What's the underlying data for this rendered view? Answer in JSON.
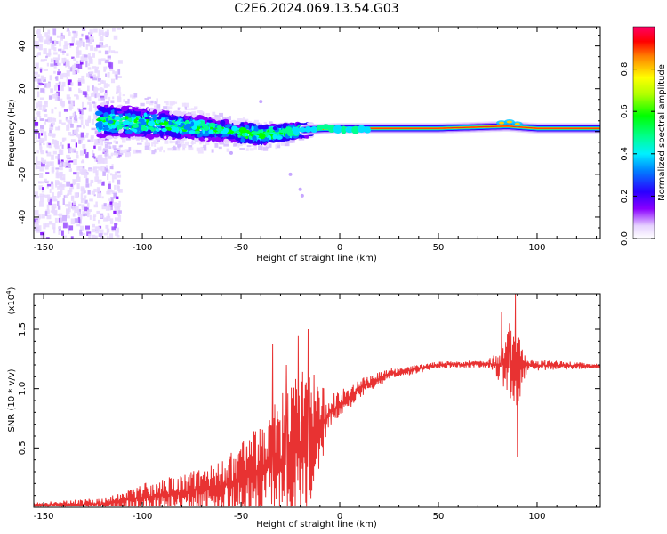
{
  "page": {
    "title": "C2E6.2024.069.13.54.G03"
  },
  "chart_data": [
    {
      "type": "heatmap",
      "xlabel": "Height of straight line (km)",
      "ylabel": "Frequency (Hz)",
      "xlim": [
        -155,
        132
      ],
      "ylim": [
        -50,
        49
      ],
      "x_ticks": [
        -150,
        -100,
        -50,
        0,
        50,
        100
      ],
      "x_tick_labels": [
        "-150",
        "-100",
        "-50",
        "0",
        "50",
        "100"
      ],
      "y_ticks": [
        -40,
        -20,
        0,
        20,
        40
      ],
      "y_tick_labels": [
        "-40",
        "-20",
        "0",
        "20",
        "40"
      ],
      "ridge": [
        {
          "x": -120,
          "f": 5
        },
        {
          "x": -100,
          "f": 4
        },
        {
          "x": -80,
          "f": 2.5
        },
        {
          "x": -60,
          "f": 0.5
        },
        {
          "x": -40,
          "f": -1.5
        },
        {
          "x": -25,
          "f": 0
        },
        {
          "x": -15,
          "f": 1
        },
        {
          "x": 0,
          "f": 1.5
        },
        {
          "x": 50,
          "f": 1.5
        },
        {
          "x": 85,
          "f": 2.5
        },
        {
          "x": 100,
          "f": 1.5
        },
        {
          "x": 132,
          "f": 1.5
        }
      ],
      "noise_region_km": [
        -155,
        -112
      ]
    },
    {
      "type": "colorbar",
      "label": "Normalized spectral amplitude",
      "range": [
        0,
        1
      ],
      "ticks": [
        0.0,
        0.2,
        0.4,
        0.6,
        0.8
      ],
      "tick_labels": [
        "0.0",
        "0.2",
        "0.4",
        "0.6",
        "0.8"
      ]
    },
    {
      "type": "line",
      "xlabel": "Height of straight line (km)",
      "ylabel": "SNR (10 * v/v)",
      "y_multiplier_label": "(x10",
      "y_multiplier_exp": "4",
      "y_multiplier_close": ")",
      "xlim": [
        -155,
        132
      ],
      "ylim": [
        0,
        1.8
      ],
      "x_ticks": [
        -150,
        -100,
        -50,
        0,
        50,
        100
      ],
      "x_tick_labels": [
        "-150",
        "-100",
        "-50",
        "0",
        "50",
        "100"
      ],
      "y_ticks": [
        0.5,
        1.0,
        1.5
      ],
      "y_tick_labels": [
        "0.5",
        "1.0",
        "1.5"
      ],
      "line_color": "#e83232",
      "envelope": [
        {
          "x": -155,
          "base": 0.02,
          "amp": 0.02
        },
        {
          "x": -120,
          "base": 0.03,
          "amp": 0.05
        },
        {
          "x": -100,
          "base": 0.08,
          "amp": 0.12
        },
        {
          "x": -80,
          "base": 0.12,
          "amp": 0.16
        },
        {
          "x": -60,
          "base": 0.18,
          "amp": 0.2
        },
        {
          "x": -40,
          "base": 0.3,
          "amp": 0.4
        },
        {
          "x": -30,
          "base": 0.4,
          "amp": 0.55
        },
        {
          "x": -20,
          "base": 0.5,
          "amp": 0.7
        },
        {
          "x": -12,
          "base": 0.65,
          "amp": 0.5
        },
        {
          "x": -5,
          "base": 0.8,
          "amp": 0.15
        },
        {
          "x": 10,
          "base": 1.0,
          "amp": 0.08
        },
        {
          "x": 25,
          "base": 1.12,
          "amp": 0.05
        },
        {
          "x": 50,
          "base": 1.2,
          "amp": 0.03
        },
        {
          "x": 75,
          "base": 1.21,
          "amp": 0.03
        },
        {
          "x": 80,
          "base": 1.2,
          "amp": 0.12
        },
        {
          "x": 86,
          "base": 1.2,
          "amp": 0.3
        },
        {
          "x": 90,
          "base": 1.15,
          "amp": 0.35
        },
        {
          "x": 95,
          "base": 1.2,
          "amp": 0.05
        },
        {
          "x": 132,
          "base": 1.19,
          "amp": 0.02
        }
      ],
      "spikes": [
        {
          "x": -34,
          "y": 1.38
        },
        {
          "x": -21,
          "y": 1.45
        },
        {
          "x": -16,
          "y": 1.5
        },
        {
          "x": -27,
          "y": 1.2
        },
        {
          "x": 82,
          "y": 1.65
        },
        {
          "x": 89,
          "y": 1.8
        },
        {
          "x": 90,
          "y": 0.42
        },
        {
          "x": 86,
          "y": 1.55
        }
      ]
    }
  ]
}
